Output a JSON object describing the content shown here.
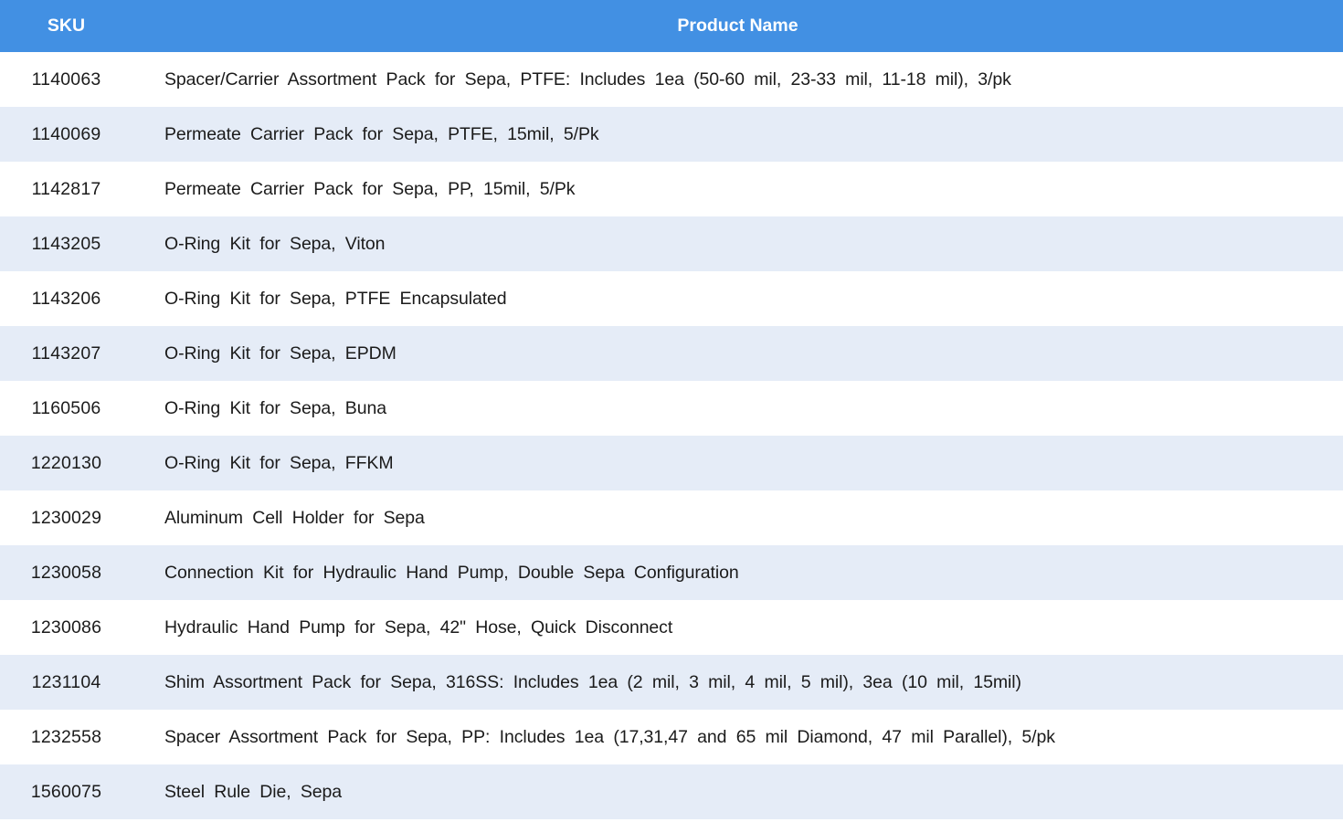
{
  "table": {
    "columns": [
      {
        "key": "sku",
        "label": "SKU"
      },
      {
        "key": "product_name",
        "label": "Product Name"
      }
    ],
    "rows": [
      {
        "sku": "1140063",
        "product_name": "Spacer/Carrier Assortment Pack for Sepa, PTFE: Includes 1ea (50-60 mil, 23-33 mil, 11-18 mil), 3/pk"
      },
      {
        "sku": "1140069",
        "product_name": "Permeate Carrier Pack for Sepa, PTFE, 15mil, 5/Pk"
      },
      {
        "sku": "1142817",
        "product_name": "Permeate Carrier Pack for Sepa, PP, 15mil, 5/Pk"
      },
      {
        "sku": "1143205",
        "product_name": "O-Ring Kit for Sepa, Viton"
      },
      {
        "sku": "1143206",
        "product_name": "O-Ring Kit for Sepa, PTFE Encapsulated"
      },
      {
        "sku": "1143207",
        "product_name": "O-Ring Kit for Sepa, EPDM"
      },
      {
        "sku": "1160506",
        "product_name": "O-Ring Kit for Sepa, Buna"
      },
      {
        "sku": "1220130",
        "product_name": "O-Ring Kit for Sepa, FFKM"
      },
      {
        "sku": "1230029",
        "product_name": "Aluminum Cell Holder for Sepa"
      },
      {
        "sku": "1230058",
        "product_name": "Connection Kit for Hydraulic Hand Pump, Double Sepa Configuration"
      },
      {
        "sku": "1230086",
        "product_name": "Hydraulic Hand Pump for Sepa, 42\" Hose, Quick Disconnect"
      },
      {
        "sku": "1231104",
        "product_name": "Shim Assortment Pack for Sepa, 316SS: Includes 1ea (2 mil, 3 mil, 4 mil, 5 mil), 3ea (10 mil, 15mil)"
      },
      {
        "sku": "1232558",
        "product_name": "Spacer Assortment Pack for Sepa, PP: Includes 1ea (17,31,47 and 65 mil Diamond, 47 mil Parallel), 5/pk"
      },
      {
        "sku": "1560075",
        "product_name": "Steel Rule Die, Sepa"
      }
    ]
  },
  "colors": {
    "header_bg": "#4290E3",
    "header_text": "#FFFFFF",
    "stripe_bg": "#E5ECF7",
    "row_bg": "#FFFFFF",
    "text": "#1B1B1B"
  }
}
